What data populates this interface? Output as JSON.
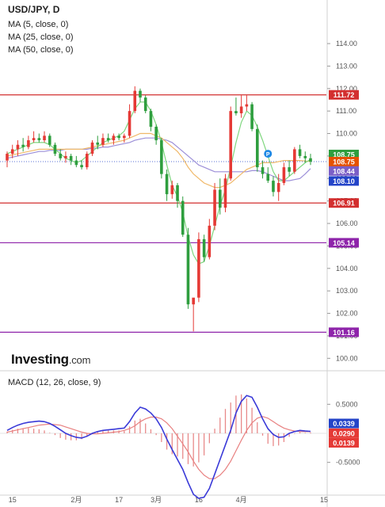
{
  "title": "USD/JPY, D",
  "indicators": [
    "MA (5, close, 0)",
    "MA (25, close, 0)",
    "MA (50, close, 0)"
  ],
  "brand": {
    "name": "Investing",
    "suffix": ".com"
  },
  "macd_label": "MACD (12, 26, close, 9)",
  "x_labels": [
    "15",
    "2月",
    "17",
    "3月",
    "16",
    "4月",
    "15"
  ],
  "price_ticks": [
    "114.00",
    "113.00",
    "112.00",
    "111.00",
    "110.00",
    "109.00",
    "108.00",
    "107.00",
    "106.00",
    "105.00",
    "104.00",
    "103.00",
    "102.00",
    "101.00",
    "100.00"
  ],
  "macd_ticks": [
    "0.5000",
    "-0.5000"
  ],
  "horizontal_lines": [
    {
      "label": "111.72",
      "color": "#d32f2f"
    },
    {
      "label": "106.91",
      "color": "#d32f2f"
    },
    {
      "label": "105.14",
      "color": "#8e24aa"
    },
    {
      "label": "101.16",
      "color": "#8e24aa"
    }
  ],
  "price_badges": [
    {
      "label": "108.75",
      "color": "#2e9e3e"
    },
    {
      "label": "108.75",
      "color": "#e65100"
    },
    {
      "label": "108.44",
      "color": "#7b5fc7"
    },
    {
      "label": "108.10",
      "color": "#2444c8"
    }
  ],
  "macd_badges": [
    {
      "label": "0.0339",
      "color": "#2444c8"
    },
    {
      "label": "0.0290",
      "color": "#e53935"
    },
    {
      "label": "0.0139",
      "color": "#e53935"
    }
  ],
  "colors": {
    "up": "#e53935",
    "down": "#2e9e3e",
    "ma5": "#7ed67e",
    "ma25": "#f0b96a",
    "ma50": "#9c8fd8",
    "macd": "#3a3ad8",
    "signal": "#e88080",
    "hist": "#e88a8a"
  },
  "chart_data": {
    "type": "candlestick",
    "symbol": "USD/JPY",
    "interval": "D",
    "ylim": [
      99.8,
      114.6
    ],
    "candles": [
      {
        "o": 108.8,
        "h": 109.2,
        "l": 108.5,
        "c": 109.1
      },
      {
        "o": 109.1,
        "h": 109.5,
        "l": 108.9,
        "c": 109.3
      },
      {
        "o": 109.3,
        "h": 109.7,
        "l": 109.0,
        "c": 109.5
      },
      {
        "o": 109.5,
        "h": 109.8,
        "l": 109.2,
        "c": 109.4
      },
      {
        "o": 109.4,
        "h": 109.9,
        "l": 109.3,
        "c": 109.7
      },
      {
        "o": 109.7,
        "h": 110.1,
        "l": 109.6,
        "c": 109.8
      },
      {
        "o": 109.8,
        "h": 110.0,
        "l": 109.6,
        "c": 109.7
      },
      {
        "o": 109.7,
        "h": 110.1,
        "l": 109.6,
        "c": 109.9
      },
      {
        "o": 109.9,
        "h": 110.0,
        "l": 109.4,
        "c": 109.5
      },
      {
        "o": 109.5,
        "h": 109.6,
        "l": 109.0,
        "c": 109.1
      },
      {
        "o": 109.1,
        "h": 109.3,
        "l": 108.8,
        "c": 108.9
      },
      {
        "o": 108.9,
        "h": 109.2,
        "l": 108.7,
        "c": 109.0
      },
      {
        "o": 109.0,
        "h": 109.1,
        "l": 108.6,
        "c": 108.8
      },
      {
        "o": 108.8,
        "h": 109.0,
        "l": 108.5,
        "c": 108.6
      },
      {
        "o": 108.6,
        "h": 108.8,
        "l": 108.4,
        "c": 108.5
      },
      {
        "o": 108.5,
        "h": 109.2,
        "l": 108.4,
        "c": 109.1
      },
      {
        "o": 109.1,
        "h": 109.7,
        "l": 109.0,
        "c": 109.6
      },
      {
        "o": 109.6,
        "h": 109.9,
        "l": 109.3,
        "c": 109.5
      },
      {
        "o": 109.5,
        "h": 110.0,
        "l": 109.4,
        "c": 109.8
      },
      {
        "o": 109.8,
        "h": 110.0,
        "l": 109.6,
        "c": 109.7
      },
      {
        "o": 109.7,
        "h": 110.0,
        "l": 109.5,
        "c": 109.9
      },
      {
        "o": 109.9,
        "h": 110.0,
        "l": 109.7,
        "c": 109.8
      },
      {
        "o": 109.8,
        "h": 110.0,
        "l": 109.6,
        "c": 109.9
      },
      {
        "o": 109.9,
        "h": 111.3,
        "l": 109.8,
        "c": 111.0
      },
      {
        "o": 111.0,
        "h": 112.1,
        "l": 110.9,
        "c": 111.9
      },
      {
        "o": 111.9,
        "h": 112.0,
        "l": 111.4,
        "c": 111.6
      },
      {
        "o": 111.6,
        "h": 111.7,
        "l": 110.9,
        "c": 111.0
      },
      {
        "o": 111.0,
        "h": 111.1,
        "l": 110.1,
        "c": 110.3
      },
      {
        "o": 110.3,
        "h": 110.4,
        "l": 109.5,
        "c": 109.7
      },
      {
        "o": 109.7,
        "h": 109.8,
        "l": 108.0,
        "c": 108.2
      },
      {
        "o": 108.2,
        "h": 108.4,
        "l": 107.0,
        "c": 107.3
      },
      {
        "o": 107.3,
        "h": 107.9,
        "l": 107.1,
        "c": 107.7
      },
      {
        "o": 107.7,
        "h": 107.8,
        "l": 106.7,
        "c": 107.0
      },
      {
        "o": 107.0,
        "h": 107.2,
        "l": 105.4,
        "c": 105.5
      },
      {
        "o": 105.5,
        "h": 105.8,
        "l": 102.2,
        "c": 102.4
      },
      {
        "o": 102.4,
        "h": 102.6,
        "l": 101.2,
        "c": 102.7
      },
      {
        "o": 102.7,
        "h": 105.6,
        "l": 102.5,
        "c": 105.3
      },
      {
        "o": 105.3,
        "h": 105.5,
        "l": 104.3,
        "c": 104.5
      },
      {
        "o": 104.5,
        "h": 106.2,
        "l": 104.4,
        "c": 105.9
      },
      {
        "o": 105.9,
        "h": 107.8,
        "l": 105.7,
        "c": 107.5
      },
      {
        "o": 107.5,
        "h": 108.0,
        "l": 106.4,
        "c": 106.7
      },
      {
        "o": 106.7,
        "h": 108.2,
        "l": 106.5,
        "c": 108.0
      },
      {
        "o": 108.0,
        "h": 111.2,
        "l": 107.9,
        "c": 111.0
      },
      {
        "o": 111.0,
        "h": 111.6,
        "l": 110.8,
        "c": 110.9
      },
      {
        "o": 110.9,
        "h": 111.7,
        "l": 110.7,
        "c": 111.2
      },
      {
        "o": 111.2,
        "h": 111.7,
        "l": 111.0,
        "c": 111.3
      },
      {
        "o": 111.3,
        "h": 111.4,
        "l": 110.1,
        "c": 110.2
      },
      {
        "o": 110.2,
        "h": 110.4,
        "l": 108.3,
        "c": 108.5
      },
      {
        "o": 108.5,
        "h": 108.8,
        "l": 108.0,
        "c": 108.2
      },
      {
        "o": 108.2,
        "h": 108.5,
        "l": 107.8,
        "c": 107.9
      },
      {
        "o": 107.9,
        "h": 108.1,
        "l": 107.2,
        "c": 107.4
      },
      {
        "o": 107.4,
        "h": 108.2,
        "l": 107.0,
        "c": 107.8
      },
      {
        "o": 107.8,
        "h": 108.7,
        "l": 107.7,
        "c": 108.5
      },
      {
        "o": 108.5,
        "h": 108.8,
        "l": 108.1,
        "c": 108.3
      },
      {
        "o": 108.3,
        "h": 109.4,
        "l": 108.2,
        "c": 109.3
      },
      {
        "o": 109.3,
        "h": 109.5,
        "l": 108.9,
        "c": 109.0
      },
      {
        "o": 109.0,
        "h": 109.2,
        "l": 108.7,
        "c": 108.9
      },
      {
        "o": 108.9,
        "h": 109.1,
        "l": 108.6,
        "c": 108.75
      }
    ],
    "ma5": [
      109.1,
      109.2,
      109.3,
      109.4,
      109.5,
      109.6,
      109.6,
      109.6,
      109.5,
      109.3,
      109.1,
      108.9,
      108.8,
      108.7,
      108.8,
      109.0,
      109.2,
      109.4,
      109.6,
      109.7,
      109.8,
      109.9,
      110.1,
      110.6,
      111.1,
      111.4,
      111.4,
      111.0,
      110.4,
      109.6,
      108.6,
      107.7,
      107.2,
      106.5,
      105.4,
      104.6,
      104.2,
      104.3,
      105.0,
      105.9,
      106.8,
      107.5,
      108.5,
      109.6,
      110.5,
      111.0,
      110.8,
      110.3,
      109.7,
      109.0,
      108.3,
      107.9,
      107.9,
      108.1,
      108.3,
      108.5,
      108.7,
      108.85
    ],
    "ma25": [
      109.0,
      109.05,
      109.1,
      109.15,
      109.2,
      109.25,
      109.3,
      109.3,
      109.3,
      109.3,
      109.3,
      109.3,
      109.3,
      109.3,
      109.3,
      109.35,
      109.4,
      109.45,
      109.5,
      109.55,
      109.6,
      109.65,
      109.7,
      109.8,
      109.9,
      110.0,
      110.0,
      110.0,
      109.9,
      109.8,
      109.6,
      109.4,
      109.2,
      108.9,
      108.5,
      108.2,
      108.0,
      107.8,
      107.7,
      107.6,
      107.6,
      107.7,
      107.8,
      108.0,
      108.2,
      108.4,
      108.5,
      108.6,
      108.7,
      108.7,
      108.7,
      108.75,
      108.8,
      108.8,
      108.8,
      108.8,
      108.78,
      108.75
    ],
    "ma50": [
      108.9,
      108.95,
      109.0,
      109.05,
      109.1,
      109.15,
      109.2,
      109.2,
      109.25,
      109.25,
      109.25,
      109.3,
      109.3,
      109.3,
      109.3,
      109.3,
      109.35,
      109.35,
      109.4,
      109.4,
      109.45,
      109.5,
      109.55,
      109.6,
      109.7,
      109.75,
      109.8,
      109.8,
      109.8,
      109.75,
      109.7,
      109.6,
      109.4,
      109.2,
      109.0,
      108.8,
      108.6,
      108.5,
      108.4,
      108.3,
      108.3,
      108.3,
      108.3,
      108.3,
      108.3,
      108.3,
      108.35,
      108.35,
      108.3,
      108.2,
      108.1,
      108.0,
      107.9,
      107.9,
      107.95,
      108.0,
      108.2,
      108.44
    ],
    "macd": [
      0.05,
      0.1,
      0.14,
      0.17,
      0.19,
      0.2,
      0.21,
      0.2,
      0.17,
      0.12,
      0.06,
      0.0,
      -0.04,
      -0.07,
      -0.08,
      -0.05,
      0.0,
      0.03,
      0.05,
      0.06,
      0.07,
      0.08,
      0.09,
      0.2,
      0.35,
      0.45,
      0.42,
      0.35,
      0.25,
      0.1,
      -0.1,
      -0.28,
      -0.45,
      -0.62,
      -0.85,
      -1.05,
      -1.12,
      -1.1,
      -0.95,
      -0.7,
      -0.45,
      -0.2,
      0.05,
      0.35,
      0.55,
      0.65,
      0.62,
      0.45,
      0.25,
      0.08,
      -0.02,
      -0.07,
      -0.06,
      0.0,
      0.03,
      0.05,
      0.04,
      0.0339
    ],
    "signal": [
      0.02,
      0.04,
      0.06,
      0.08,
      0.1,
      0.12,
      0.14,
      0.15,
      0.16,
      0.15,
      0.14,
      0.11,
      0.08,
      0.05,
      0.02,
      0.0,
      -0.01,
      -0.01,
      0.0,
      0.01,
      0.02,
      0.03,
      0.05,
      0.08,
      0.13,
      0.2,
      0.25,
      0.28,
      0.28,
      0.25,
      0.18,
      0.08,
      -0.05,
      -0.18,
      -0.32,
      -0.48,
      -0.62,
      -0.72,
      -0.78,
      -0.78,
      -0.72,
      -0.62,
      -0.48,
      -0.3,
      -0.12,
      0.05,
      0.18,
      0.26,
      0.29,
      0.26,
      0.2,
      0.14,
      0.09,
      0.06,
      0.04,
      0.03,
      0.03,
      0.029
    ],
    "histogram": [
      0.03,
      0.06,
      0.08,
      0.09,
      0.09,
      0.08,
      0.07,
      0.05,
      0.01,
      -0.03,
      -0.08,
      -0.11,
      -0.12,
      -0.12,
      -0.1,
      -0.05,
      0.01,
      0.04,
      0.05,
      0.05,
      0.05,
      0.05,
      0.04,
      0.12,
      0.22,
      0.25,
      0.17,
      0.07,
      -0.03,
      -0.15,
      -0.28,
      -0.36,
      -0.4,
      -0.44,
      -0.53,
      -0.57,
      -0.5,
      -0.38,
      -0.17,
      0.08,
      0.27,
      0.42,
      0.53,
      0.65,
      0.67,
      0.6,
      0.44,
      0.19,
      -0.04,
      -0.18,
      -0.22,
      -0.21,
      -0.15,
      -0.06,
      -0.01,
      0.02,
      0.01,
      0.0139
    ],
    "macd_ylim": [
      -1.05,
      1.05
    ]
  }
}
